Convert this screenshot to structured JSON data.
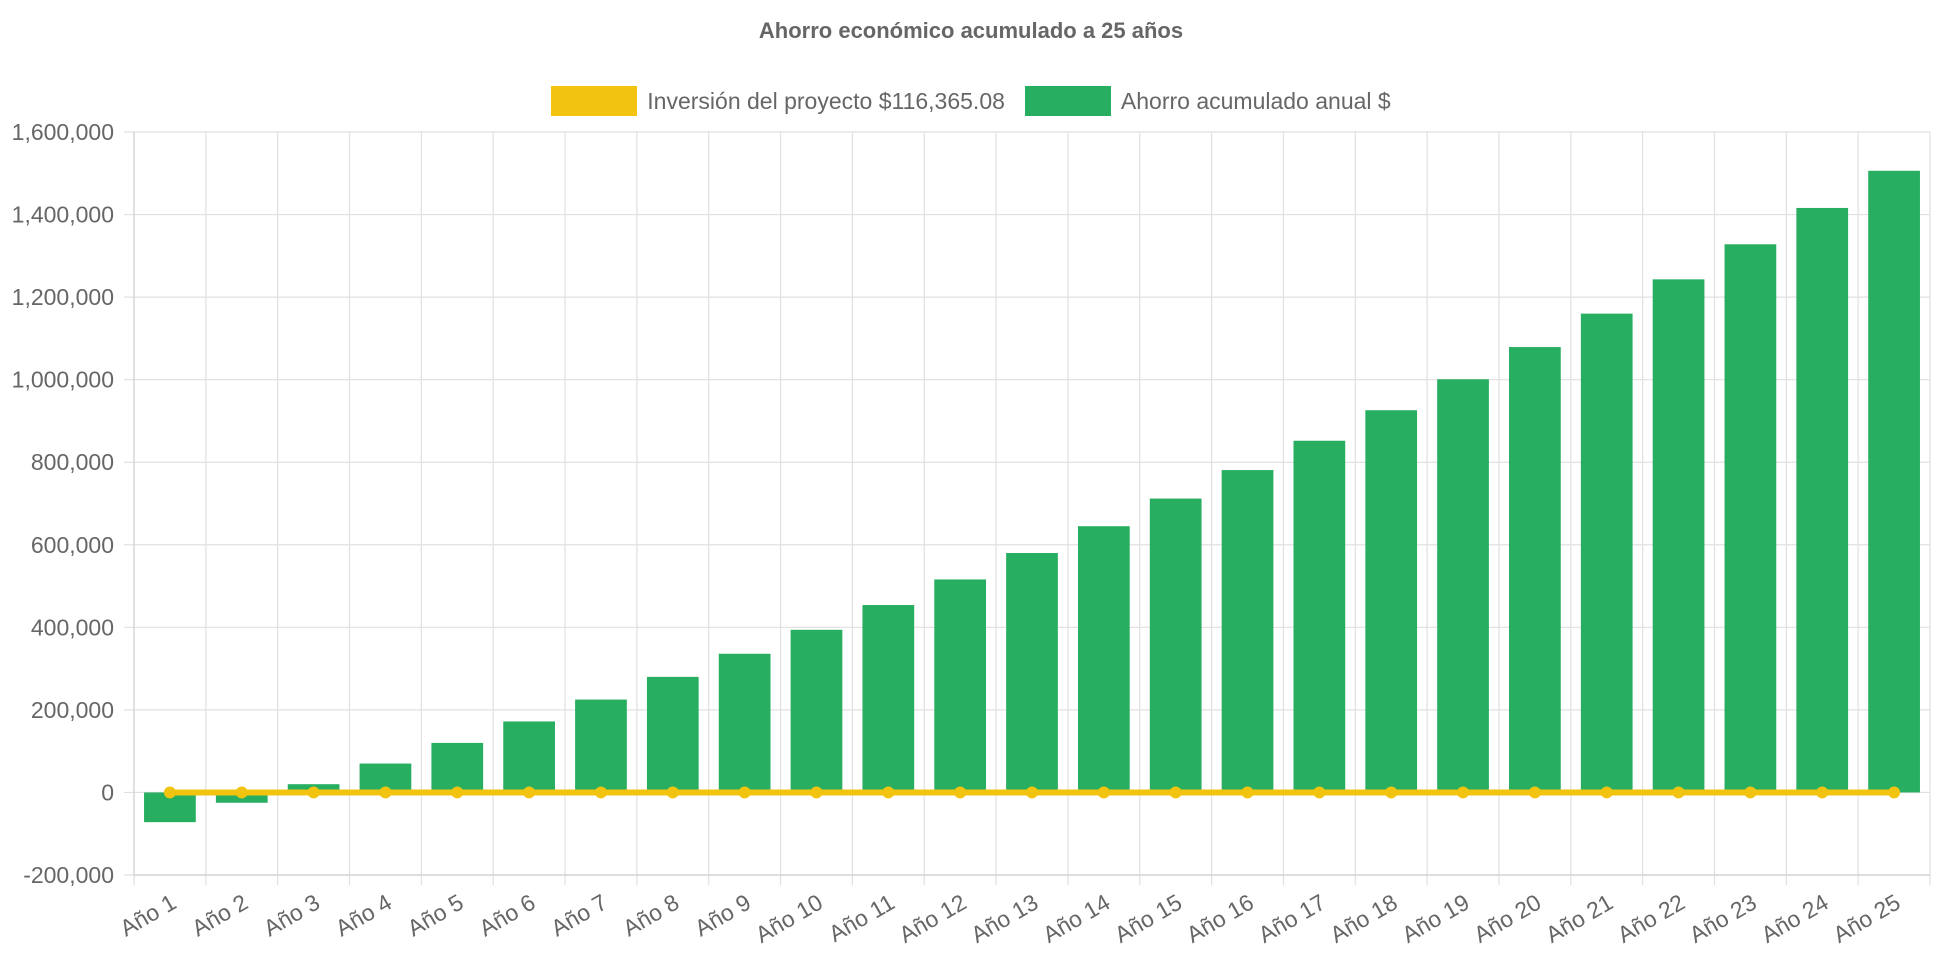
{
  "chart_data": {
    "type": "bar",
    "title": "Ahorro económico acumulado a 25 años",
    "xlabel": "",
    "ylabel": "",
    "categories": [
      "Año 1",
      "Año 2",
      "Año 3",
      "Año 4",
      "Año 5",
      "Año 6",
      "Año 7",
      "Año 8",
      "Año 9",
      "Año 10",
      "Año 11",
      "Año 12",
      "Año 13",
      "Año 14",
      "Año 15",
      "Año 16",
      "Año 17",
      "Año 18",
      "Año 19",
      "Año 20",
      "Año 21",
      "Año 22",
      "Año 23",
      "Año 24",
      "Año 25"
    ],
    "series": [
      {
        "name": "Inversión del proyecto $116,365.08",
        "type": "line",
        "color": "#f2c40f",
        "values": [
          0,
          0,
          0,
          0,
          0,
          0,
          0,
          0,
          0,
          0,
          0,
          0,
          0,
          0,
          0,
          0,
          0,
          0,
          0,
          0,
          0,
          0,
          0,
          0,
          0
        ]
      },
      {
        "name": "Ahorro acumulado anual $",
        "type": "bar",
        "color": "#27ae60",
        "values": [
          -72000,
          -25000,
          20000,
          70000,
          120000,
          172000,
          225000,
          280000,
          336000,
          394000,
          454000,
          516000,
          580000,
          645000,
          712000,
          781000,
          852000,
          926000,
          1001000,
          1079000,
          1160000,
          1243000,
          1328000,
          1416000,
          1506000
        ]
      }
    ],
    "ylim": [
      -200000,
      1600000
    ],
    "yticks": [
      -200000,
      0,
      200000,
      400000,
      600000,
      800000,
      1000000,
      1200000,
      1400000,
      1600000
    ],
    "ytick_labels": [
      "-200,000",
      "0",
      "200,000",
      "400,000",
      "600,000",
      "800,000",
      "1,000,000",
      "1,200,000",
      "1,400,000",
      "1,600,000"
    ],
    "grid": true,
    "legend_position": "top"
  }
}
